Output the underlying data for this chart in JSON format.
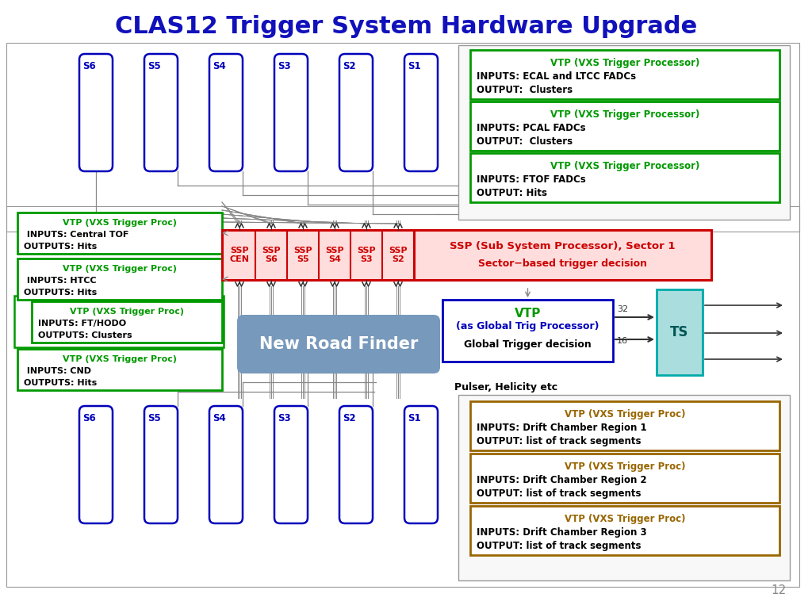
{
  "title": "CLAS12 Trigger System Hardware Upgrade",
  "title_color": "#1111BB",
  "bg_color": "#ffffff",
  "page_number": "12",
  "sector_color": "#0000BB",
  "top_vtp_boxes": [
    {
      "title": "VTP (VXS Trigger Processor)",
      "line2": "INPUTS: ECAL and LTCC FADCs",
      "line3": "OUTPUT:  Clusters",
      "border_color": "#009900",
      "title_color": "#009900"
    },
    {
      "title": "VTP (VXS Trigger Processor)",
      "line2": "INPUTS: PCAL FADCs",
      "line3": "OUTPUT:  Clusters",
      "border_color": "#009900",
      "title_color": "#009900"
    },
    {
      "title": "VTP (VXS Trigger Processor)",
      "line2": "INPUTS: FTOF FADCs",
      "line3": "OUTPUT: Hits",
      "border_color": "#009900",
      "title_color": "#009900"
    }
  ],
  "left_vtp_boxes": [
    {
      "title": "VTP (VXS Trigger Proc)",
      "line2": " INPUTS: Central TOF",
      "line3": "OUTPUTS: Hits",
      "border_color": "#009900",
      "title_color": "#009900",
      "indent": 0
    },
    {
      "title": "VTP (VXS Trigger Proc)",
      "line2": " INPUTS: HTCC",
      "line3": "OUTPUTS: Hits",
      "border_color": "#009900",
      "title_color": "#009900",
      "indent": 0
    },
    {
      "title": "VTP (VXS Trigger Proc)",
      "line2": "INPUTS: FT/HODO",
      "line3": "OUTPUTS: Clusters",
      "border_color": "#009900",
      "title_color": "#009900",
      "indent": 18
    },
    {
      "title": "VTP (VXS Trigger Proc)",
      "line2": " INPUTS: CND",
      "line3": "OUTPUTS: Hits",
      "border_color": "#009900",
      "title_color": "#009900",
      "indent": 0
    }
  ],
  "ssp_labels": [
    "SSP\nCEN",
    "SSP\nS6",
    "SSP\nS5",
    "SSP\nS4",
    "SSP\nS3",
    "SSP\nS2"
  ],
  "ssp_box_title": "SSP (Sub System Processor), Sector 1",
  "ssp_box_line2": "Sector−based trigger decision",
  "ssp_color": "#CC0000",
  "ssp_bg": "#FFDDDD",
  "vtp_global_title": "VTP",
  "vtp_global_line2": "(as Global Trig Processor)",
  "vtp_global_line3": "Global Trigger decision",
  "vtp_global_border": "#0000BB",
  "vtp_global_title_color": "#009900",
  "vtp_global_line2_color": "#0000BB",
  "ts_label": "TS",
  "ts_border": "#00AAAA",
  "ts_face": "#AADDDD",
  "new_road_finder": "New Road Finder",
  "nrf_bg": "#7799BB",
  "nrf_text": "#ffffff",
  "pulser_text": "Pulser, Helicity etc",
  "bottom_vtp_boxes": [
    {
      "title": "VTP (VXS Trigger Proc)",
      "line2": "INPUTS: Drift Chamber Region 1",
      "line3": "OUTPUT: list of track segments",
      "border_color": "#996600",
      "title_color": "#996600"
    },
    {
      "title": "VTP (VXS Trigger Proc)",
      "line2": "INPUTS: Drift Chamber Region 2",
      "line3": "OUTPUT: list of track segments",
      "border_color": "#996600",
      "title_color": "#996600"
    },
    {
      "title": "VTP (VXS Trigger Proc)",
      "line2": "INPUTS: Drift Chamber Region 3",
      "line3": "OUTPUT: list of track segments",
      "border_color": "#996600",
      "title_color": "#996600"
    }
  ]
}
